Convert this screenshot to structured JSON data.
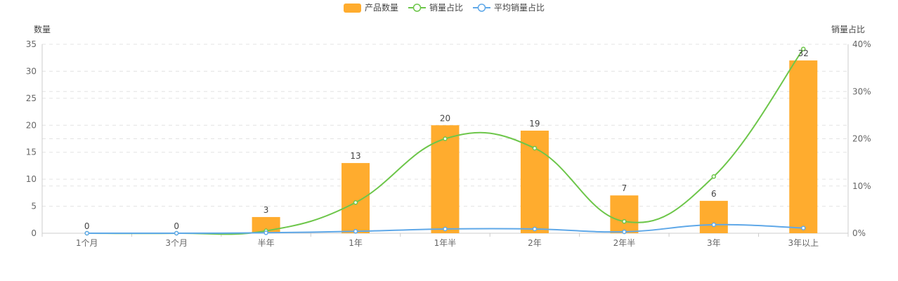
{
  "chart_data": {
    "type": "bar",
    "categories": [
      "1个月",
      "3个月",
      "半年",
      "1年",
      "1年半",
      "2年",
      "2年半",
      "3年",
      "3年以上"
    ],
    "series": [
      {
        "name": "产品数量",
        "kind": "bar",
        "axis": "left",
        "color": "#FFAC2E",
        "values": [
          0,
          0,
          3,
          13,
          20,
          19,
          7,
          6,
          32
        ],
        "labels": [
          "0",
          "0",
          "3",
          "13",
          "20",
          "19",
          "7",
          "6",
          "32"
        ]
      },
      {
        "name": "销量占比",
        "kind": "line",
        "axis": "right",
        "color": "#6DC64A",
        "values": [
          0,
          0,
          0.5,
          6.5,
          20,
          18,
          2.5,
          12,
          39
        ]
      },
      {
        "name": "平均销量占比",
        "kind": "line",
        "axis": "right",
        "color": "#5FA8E8",
        "values": [
          0,
          0,
          0.1,
          0.4,
          0.9,
          0.9,
          0.3,
          1.8,
          1.1
        ]
      }
    ],
    "yleft": {
      "label": "数量",
      "min": 0,
      "max": 35,
      "ticks": [
        "0",
        "5",
        "10",
        "15",
        "20",
        "25",
        "30",
        "35"
      ]
    },
    "yright": {
      "label": "销量占比",
      "min": 0,
      "max": 40,
      "ticks": [
        "0%",
        "10%",
        "20%",
        "30%",
        "40%"
      ]
    },
    "grid": true,
    "legend_position": "top-center"
  }
}
